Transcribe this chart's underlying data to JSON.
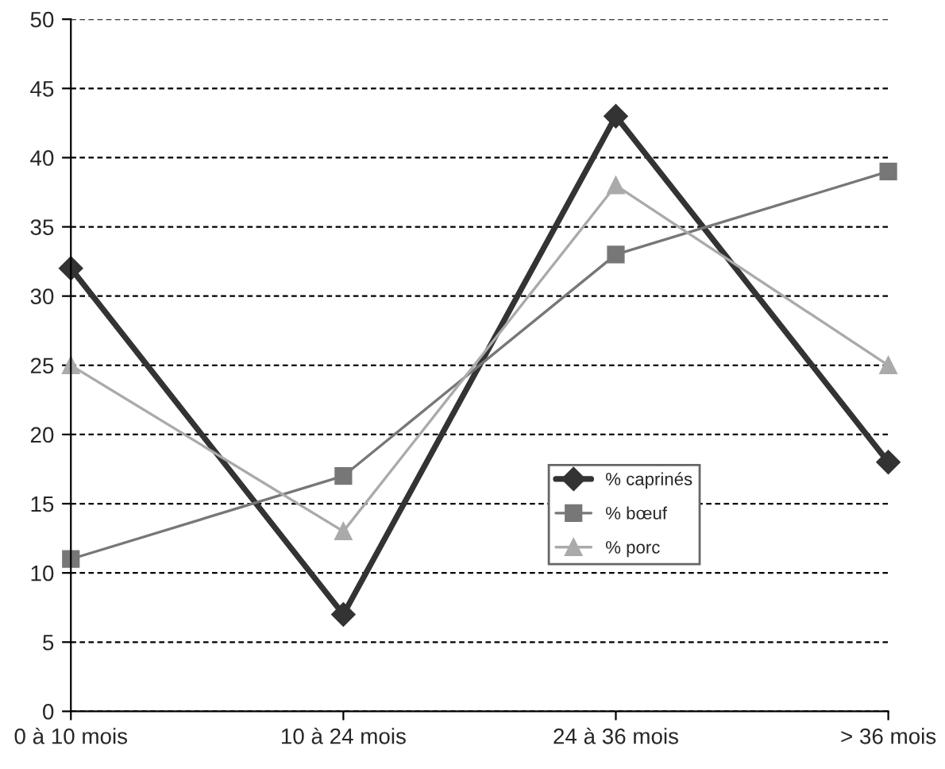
{
  "chart_data": {
    "type": "line",
    "categories": [
      "0 à 10 mois",
      "10 à 24 mois",
      "24 à 36 mois",
      "> 36 mois"
    ],
    "series": [
      {
        "name": "% caprinés",
        "color": "#333333",
        "marker": "diamond",
        "values": [
          32,
          7,
          43,
          18
        ]
      },
      {
        "name": "% bœuf",
        "color": "#777777",
        "marker": "square",
        "values": [
          11,
          17,
          33,
          39
        ]
      },
      {
        "name": "% porc",
        "color": "#aaaaaa",
        "marker": "triangle",
        "values": [
          25,
          13,
          38,
          25
        ]
      }
    ],
    "ylim": [
      0,
      50
    ],
    "yticks": [
      0,
      5,
      10,
      15,
      20,
      25,
      30,
      35,
      40,
      45,
      50
    ],
    "grid": "y",
    "legend": "lower right",
    "line_style": "solid"
  }
}
